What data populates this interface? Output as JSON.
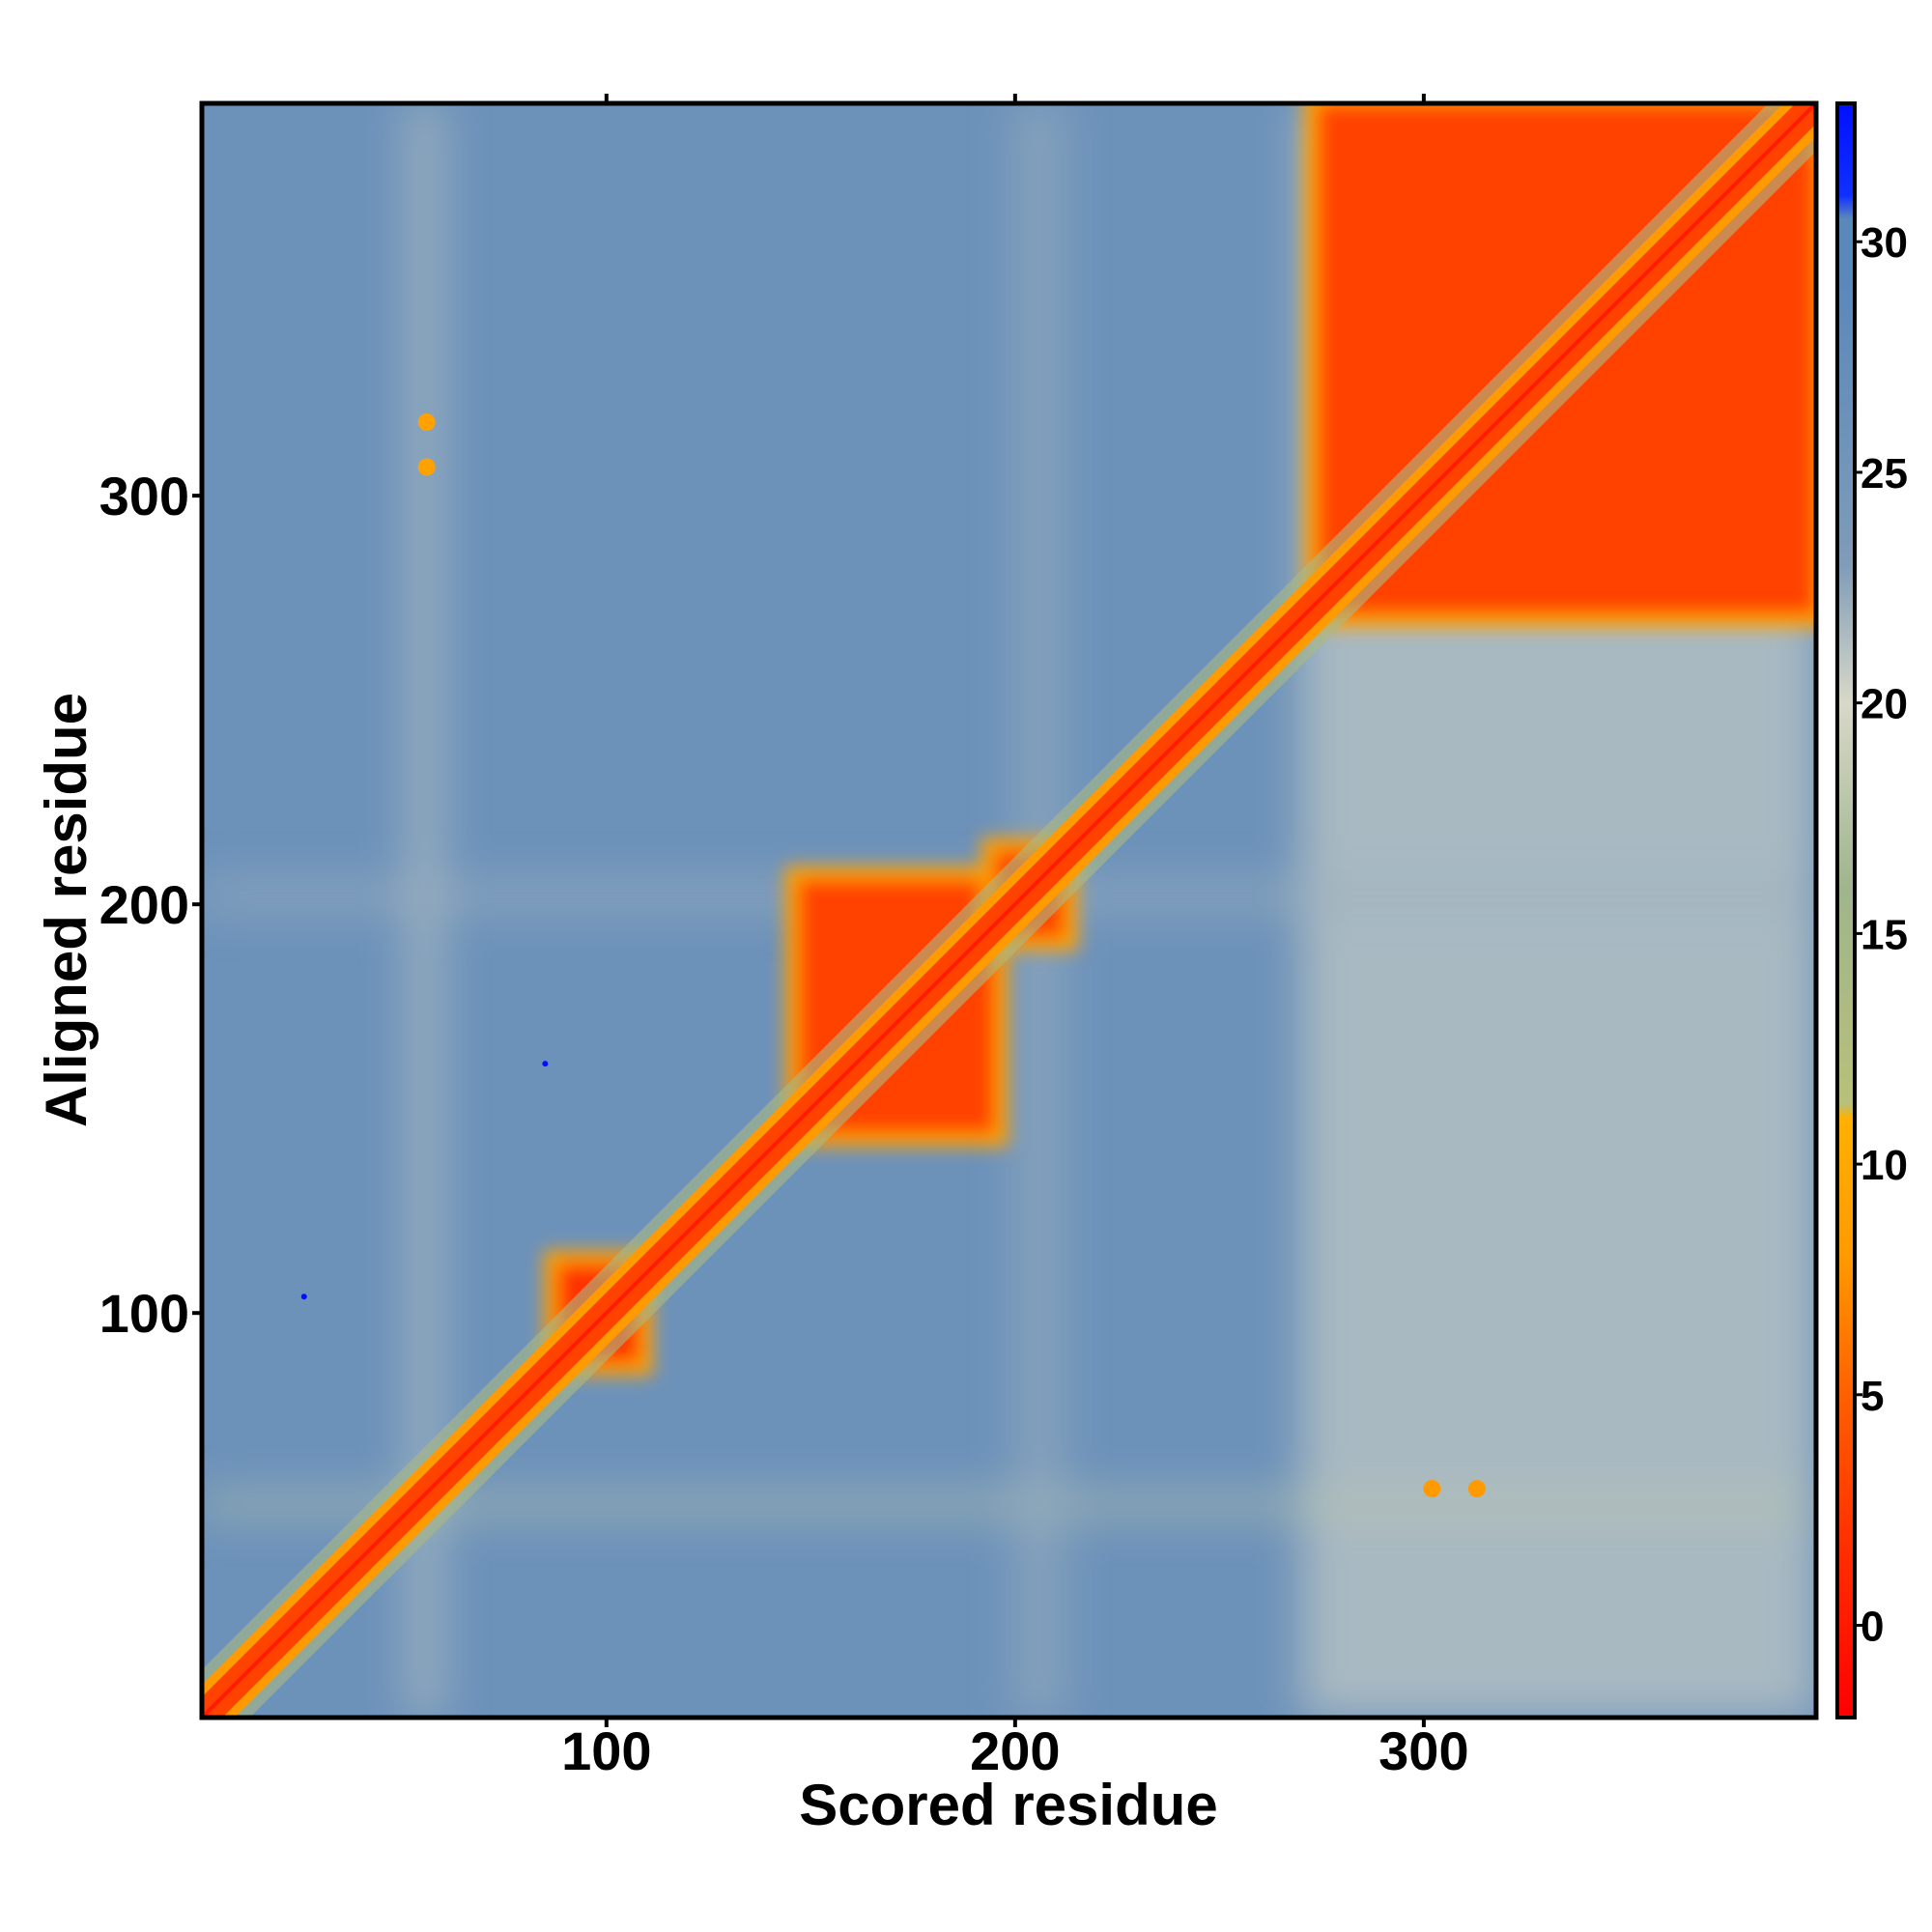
{
  "chart_data": {
    "type": "heatmap",
    "title": "",
    "xlabel": "Scored residue",
    "ylabel": "Aligned residue",
    "xlim": [
      1,
      396
    ],
    "ylim": [
      1,
      396
    ],
    "x_ticks": [
      100,
      200,
      300
    ],
    "y_ticks": [
      100,
      200,
      300
    ],
    "colorbar": {
      "range": [
        -2,
        33
      ],
      "ticks": [
        0,
        5,
        10,
        15,
        20,
        25,
        30
      ],
      "colors": [
        {
          "value": -2,
          "color": "#ff0000"
        },
        {
          "value": 2,
          "color": "#ff3300"
        },
        {
          "value": 5,
          "color": "#ff6000"
        },
        {
          "value": 8,
          "color": "#ff9a00"
        },
        {
          "value": 11,
          "color": "#ffb000"
        },
        {
          "value": 11.3,
          "color": "#b8c07a"
        },
        {
          "value": 16,
          "color": "#9fb58c"
        },
        {
          "value": 20,
          "color": "#d8d8c8"
        },
        {
          "value": 23,
          "color": "#7f9cb8"
        },
        {
          "value": 29,
          "color": "#5b88bb"
        },
        {
          "value": 30.5,
          "color": "#5b88bb"
        },
        {
          "value": 31,
          "color": "#1030ff"
        },
        {
          "value": 33,
          "color": "#0010ff"
        }
      ]
    },
    "background_value": 26,
    "features": [
      {
        "kind": "diagonal",
        "from": 1,
        "to": 396,
        "value": 0,
        "band_width": 6
      },
      {
        "kind": "block",
        "x": [
          88,
          108
        ],
        "y": [
          88,
          112
        ],
        "value": 2
      },
      {
        "kind": "block",
        "x": [
          147,
          195
        ],
        "y": [
          144,
          206
        ],
        "value": 3
      },
      {
        "kind": "block",
        "x": [
          195,
          212
        ],
        "y": [
          192,
          213
        ],
        "value": 3
      },
      {
        "kind": "block",
        "x": [
          274,
          396
        ],
        "y": [
          271,
          396
        ],
        "value": 3
      },
      {
        "kind": "band",
        "axis": "x",
        "range": [
          51,
          60
        ],
        "value": 21
      },
      {
        "kind": "band",
        "axis": "x",
        "range": [
          270,
          396
        ],
        "value": 20
      },
      {
        "kind": "band",
        "axis": "y",
        "range": [
          50,
          56
        ],
        "value": 18
      },
      {
        "kind": "band",
        "axis": "x",
        "range": [
          200,
          212
        ],
        "value": 22
      },
      {
        "kind": "band",
        "axis": "y",
        "range": [
          198,
          206
        ],
        "value": 22
      },
      {
        "kind": "spot",
        "x": 56,
        "y": 318,
        "value": 9
      },
      {
        "kind": "spot",
        "x": 56,
        "y": 307,
        "value": 9
      },
      {
        "kind": "spot",
        "x": 302,
        "y": 57,
        "value": 8
      },
      {
        "kind": "spot",
        "x": 313,
        "y": 57,
        "value": 8
      },
      {
        "kind": "spot",
        "x": 26,
        "y": 104,
        "value": 33
      },
      {
        "kind": "spot",
        "x": 85,
        "y": 161,
        "value": 33
      }
    ]
  }
}
